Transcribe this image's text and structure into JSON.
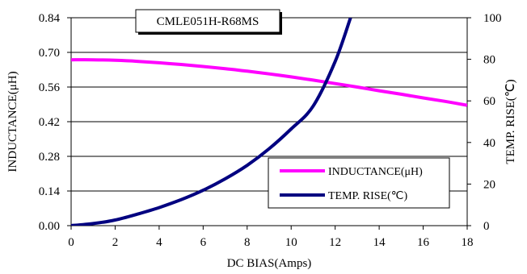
{
  "chart_data": {
    "type": "line",
    "title": "CMLE051H-R68MS",
    "xlabel": "DC BIAS(Amps)",
    "ylabel_left": "INDUCTANCE(μH)",
    "ylabel_right": "TEMP. RISE(℃)",
    "xlim": [
      0,
      18
    ],
    "ylim_left": [
      0,
      0.84
    ],
    "ylim_right": [
      0,
      100
    ],
    "x_ticks": [
      "0",
      "2",
      "4",
      "6",
      "8",
      "10",
      "12",
      "14",
      "16",
      "18"
    ],
    "y_left_ticks": [
      "0.00",
      "0.14",
      "0.28",
      "0.42",
      "0.56",
      "0.70",
      "0.84"
    ],
    "y_right_ticks": [
      "0",
      "20",
      "40",
      "60",
      "80",
      "100"
    ],
    "grid": true,
    "legend_position": "bottom-right",
    "series": [
      {
        "name": "INDUCTANCE(μH)",
        "axis": "left",
        "color": "#ff00ff",
        "x": [
          0,
          1,
          2,
          3,
          4,
          5,
          6,
          7,
          8,
          9,
          10,
          11,
          12,
          13,
          14,
          15,
          16,
          17,
          18
        ],
        "y": [
          0.67,
          0.67,
          0.668,
          0.664,
          0.658,
          0.651,
          0.643,
          0.634,
          0.624,
          0.613,
          0.601,
          0.588,
          0.574,
          0.56,
          0.545,
          0.531,
          0.516,
          0.502,
          0.486
        ]
      },
      {
        "name": "TEMP. RISE(℃)",
        "axis": "right",
        "color": "#000080",
        "x": [
          0,
          1,
          2,
          3,
          4,
          5,
          6,
          7,
          8,
          9,
          10,
          11,
          12,
          12.7
        ],
        "y": [
          0,
          1,
          2.7,
          5.5,
          8.7,
          12.5,
          17,
          22.5,
          29,
          37,
          46.5,
          57.5,
          79,
          100
        ]
      }
    ]
  }
}
